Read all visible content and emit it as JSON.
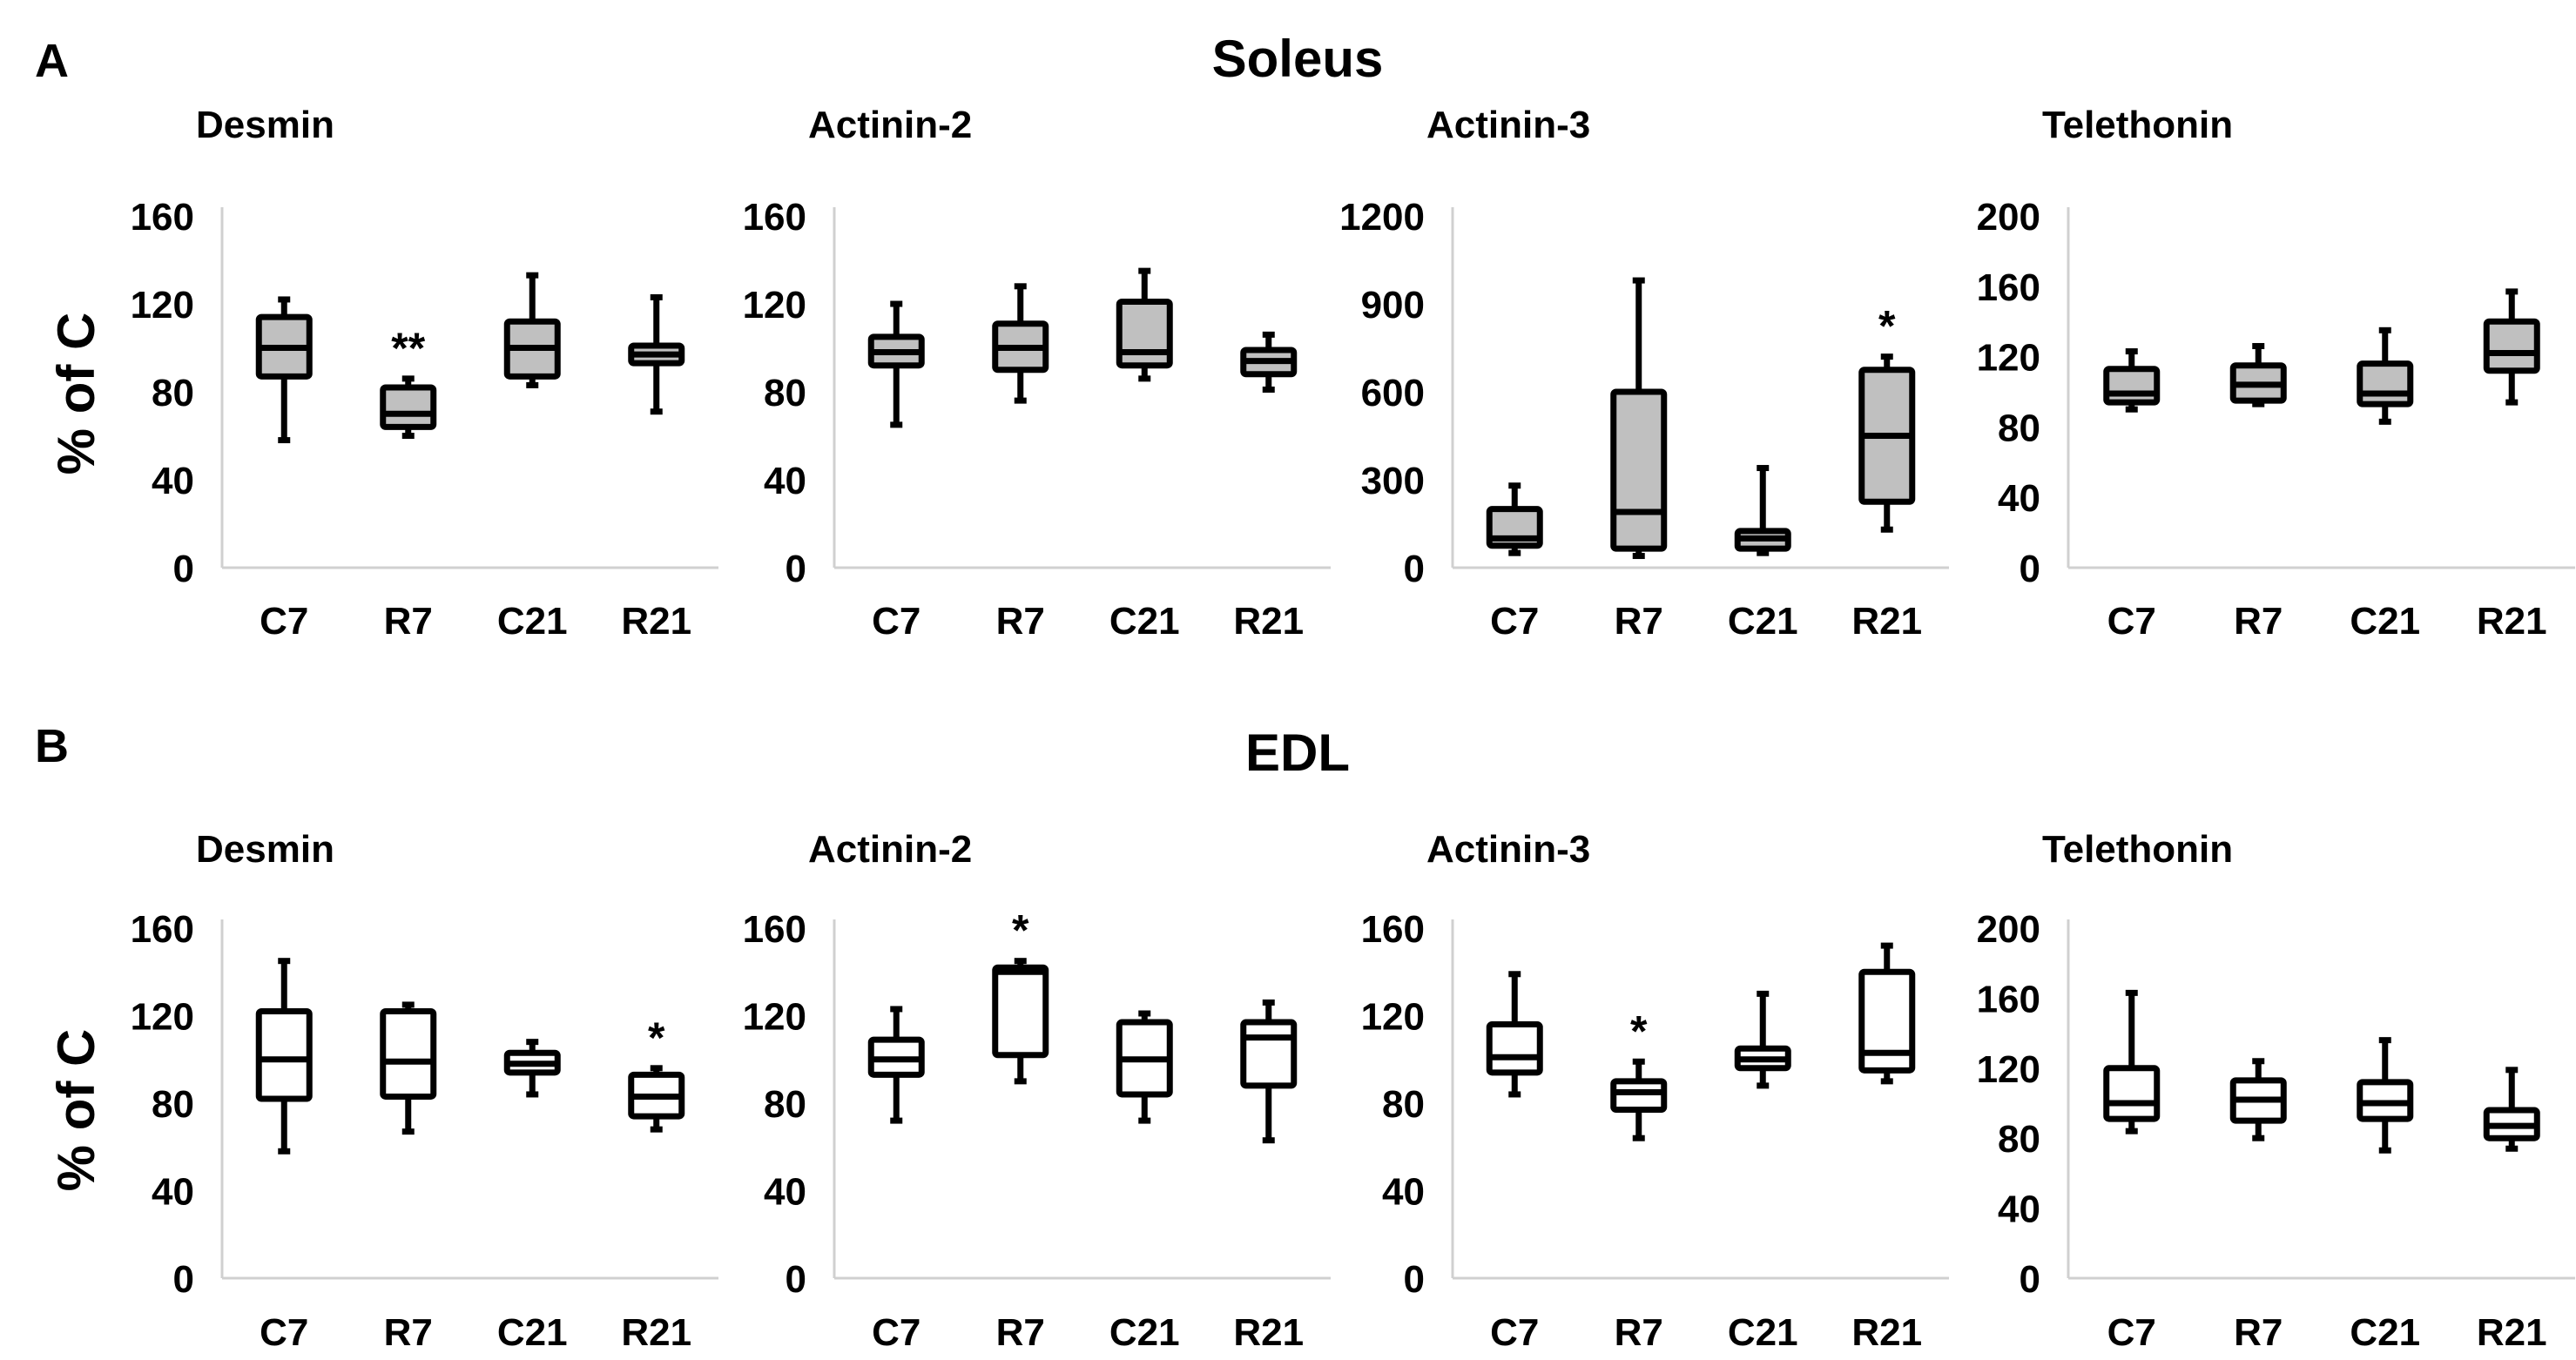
{
  "panels": [
    {
      "label": "A",
      "title": "Soleus"
    },
    {
      "label": "B",
      "title": "EDL"
    }
  ],
  "ylabel": "% of C",
  "chart_data": [
    {
      "type": "box",
      "panel": "A",
      "muscle": "Soleus",
      "title": "Desmin",
      "fill": "#c0c0c0",
      "categories": [
        "C7",
        "R7",
        "C21",
        "R21"
      ],
      "ylim": [
        0,
        160
      ],
      "yticks": [
        0,
        40,
        80,
        120,
        160
      ],
      "boxes": [
        {
          "min": 58,
          "q1": 87,
          "median": 100,
          "q3": 114,
          "max": 122,
          "mark": ""
        },
        {
          "min": 60,
          "q1": 64,
          "median": 70,
          "q3": 82,
          "max": 86,
          "mark": "**"
        },
        {
          "min": 83,
          "q1": 87,
          "median": 100,
          "q3": 112,
          "max": 133,
          "mark": ""
        },
        {
          "min": 71,
          "q1": 93,
          "median": 97,
          "q3": 101,
          "max": 123,
          "mark": ""
        }
      ]
    },
    {
      "type": "box",
      "panel": "A",
      "muscle": "Soleus",
      "title": "Actinin-2",
      "fill": "#c0c0c0",
      "categories": [
        "C7",
        "R7",
        "C21",
        "R21"
      ],
      "ylim": [
        0,
        160
      ],
      "yticks": [
        0,
        40,
        80,
        120,
        160
      ],
      "boxes": [
        {
          "min": 65,
          "q1": 92,
          "median": 98,
          "q3": 105,
          "max": 120,
          "mark": ""
        },
        {
          "min": 76,
          "q1": 90,
          "median": 100,
          "q3": 111,
          "max": 128,
          "mark": ""
        },
        {
          "min": 86,
          "q1": 92,
          "median": 98,
          "q3": 121,
          "max": 135,
          "mark": ""
        },
        {
          "min": 81,
          "q1": 88,
          "median": 94,
          "q3": 99,
          "max": 106,
          "mark": ""
        }
      ]
    },
    {
      "type": "box",
      "panel": "A",
      "muscle": "Soleus",
      "title": "Actinin-3",
      "fill": "#c0c0c0",
      "categories": [
        "C7",
        "R7",
        "C21",
        "R21"
      ],
      "ylim": [
        0,
        1200
      ],
      "yticks": [
        0,
        300,
        600,
        900,
        1200
      ],
      "boxes": [
        {
          "min": 50,
          "q1": 75,
          "median": 100,
          "q3": 200,
          "max": 280,
          "mark": ""
        },
        {
          "min": 40,
          "q1": 65,
          "median": 190,
          "q3": 600,
          "max": 980,
          "mark": ""
        },
        {
          "min": 50,
          "q1": 65,
          "median": 100,
          "q3": 125,
          "max": 340,
          "mark": ""
        },
        {
          "min": 130,
          "q1": 225,
          "median": 450,
          "q3": 675,
          "max": 720,
          "mark": "*"
        }
      ]
    },
    {
      "type": "box",
      "panel": "A",
      "muscle": "Soleus",
      "title": "Telethonin",
      "fill": "#c0c0c0",
      "categories": [
        "C7",
        "R7",
        "C21",
        "R21"
      ],
      "ylim": [
        0,
        200
      ],
      "yticks": [
        0,
        40,
        80,
        120,
        160,
        200
      ],
      "boxes": [
        {
          "min": 90,
          "q1": 94,
          "median": 99,
          "q3": 113,
          "max": 123,
          "mark": ""
        },
        {
          "min": 93,
          "q1": 95,
          "median": 104,
          "q3": 115,
          "max": 126,
          "mark": ""
        },
        {
          "min": 83,
          "q1": 93,
          "median": 99,
          "q3": 116,
          "max": 135,
          "mark": ""
        },
        {
          "min": 94,
          "q1": 112,
          "median": 122,
          "q3": 140,
          "max": 157,
          "mark": ""
        }
      ]
    },
    {
      "type": "box",
      "panel": "B",
      "muscle": "EDL",
      "title": "Desmin",
      "fill": "#ffffff",
      "categories": [
        "C7",
        "R7",
        "C21",
        "R21"
      ],
      "ylim": [
        0,
        160
      ],
      "yticks": [
        0,
        40,
        80,
        120,
        160
      ],
      "boxes": [
        {
          "min": 58,
          "q1": 82,
          "median": 100,
          "q3": 122,
          "max": 145,
          "mark": ""
        },
        {
          "min": 67,
          "q1": 83,
          "median": 99,
          "q3": 122,
          "max": 125,
          "mark": ""
        },
        {
          "min": 84,
          "q1": 94,
          "median": 98,
          "q3": 103,
          "max": 108,
          "mark": ""
        },
        {
          "min": 68,
          "q1": 74,
          "median": 83,
          "q3": 93,
          "max": 96,
          "mark": "*"
        }
      ]
    },
    {
      "type": "box",
      "panel": "B",
      "muscle": "EDL",
      "title": "Actinin-2",
      "fill": "#ffffff",
      "categories": [
        "C7",
        "R7",
        "C21",
        "R21"
      ],
      "ylim": [
        0,
        160
      ],
      "yticks": [
        0,
        40,
        80,
        120,
        160
      ],
      "boxes": [
        {
          "min": 72,
          "q1": 93,
          "median": 100,
          "q3": 109,
          "max": 123,
          "mark": ""
        },
        {
          "min": 90,
          "q1": 102,
          "median": 140,
          "q3": 142,
          "max": 145,
          "mark": "*"
        },
        {
          "min": 72,
          "q1": 84,
          "median": 100,
          "q3": 117,
          "max": 121,
          "mark": ""
        },
        {
          "min": 63,
          "q1": 88,
          "median": 110,
          "q3": 117,
          "max": 126,
          "mark": ""
        }
      ]
    },
    {
      "type": "box",
      "panel": "B",
      "muscle": "EDL",
      "title": "Actinin-3",
      "fill": "#ffffff",
      "categories": [
        "C7",
        "R7",
        "C21",
        "R21"
      ],
      "ylim": [
        0,
        160
      ],
      "yticks": [
        0,
        40,
        80,
        120,
        160
      ],
      "boxes": [
        {
          "min": 84,
          "q1": 94,
          "median": 101,
          "q3": 116,
          "max": 139,
          "mark": ""
        },
        {
          "min": 64,
          "q1": 77,
          "median": 85,
          "q3": 90,
          "max": 99,
          "mark": "*"
        },
        {
          "min": 88,
          "q1": 96,
          "median": 100,
          "q3": 105,
          "max": 130,
          "mark": ""
        },
        {
          "min": 90,
          "q1": 95,
          "median": 103,
          "q3": 140,
          "max": 152,
          "mark": ""
        }
      ]
    },
    {
      "type": "box",
      "panel": "B",
      "muscle": "EDL",
      "title": "Telethonin",
      "fill": "#ffffff",
      "categories": [
        "C7",
        "R7",
        "C21",
        "R21"
      ],
      "ylim": [
        0,
        200
      ],
      "yticks": [
        0,
        40,
        80,
        120,
        160,
        200
      ],
      "boxes": [
        {
          "min": 84,
          "q1": 91,
          "median": 100,
          "q3": 120,
          "max": 163,
          "mark": ""
        },
        {
          "min": 80,
          "q1": 90,
          "median": 102,
          "q3": 113,
          "max": 124,
          "mark": ""
        },
        {
          "min": 73,
          "q1": 91,
          "median": 100,
          "q3": 112,
          "max": 136,
          "mark": ""
        },
        {
          "min": 74,
          "q1": 80,
          "median": 87,
          "q3": 96,
          "max": 119,
          "mark": ""
        }
      ]
    }
  ]
}
